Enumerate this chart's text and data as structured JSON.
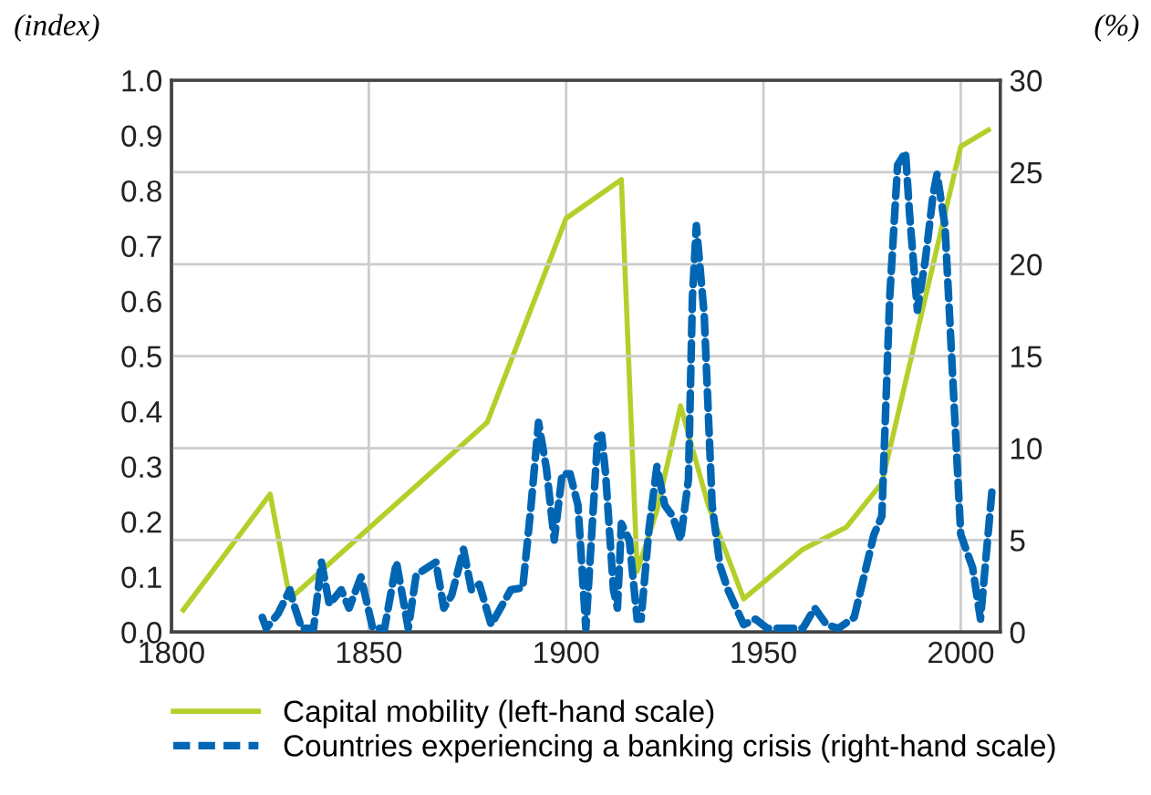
{
  "chart_data": {
    "type": "line",
    "ylabel": "(index)",
    "y2label": "(%)",
    "xlim": [
      1800,
      2010
    ],
    "xticks": [
      1800,
      1850,
      1900,
      1950,
      2000
    ],
    "ylim": [
      0,
      1
    ],
    "yticks": [
      {
        "value": 0,
        "label": "0.0"
      },
      0.1,
      0.2,
      0.3,
      0.4,
      0.5,
      0.6,
      0.7,
      0.8,
      0.9,
      {
        "value": 1,
        "label": "1.0"
      }
    ],
    "y2lim": [
      0,
      30
    ],
    "y2ticks": [
      0,
      5,
      10,
      15,
      20,
      25,
      30
    ],
    "grid": true,
    "legend": "bottom",
    "marker": "none",
    "series": [
      {
        "name": "Capital mobility (left-hand scale)",
        "color": "#b5cf2a",
        "line_style": "solid",
        "x": [
          1803,
          1825,
          1830,
          1880,
          1900,
          1914,
          1918,
          1923,
          1929,
          1936,
          1945,
          1960,
          1971,
          1980,
          2000,
          2007
        ],
        "values": [
          0.04,
          0.25,
          0.06,
          0.38,
          0.75,
          0.82,
          0.11,
          0.22,
          0.41,
          0.23,
          0.06,
          0.15,
          0.19,
          0.27,
          0.88,
          0.91
        ]
      },
      {
        "name": "Countries experiencing a banking crisis (right-hand scale)",
        "color": "#0066b3",
        "line_style": "dashed",
        "axis": "y2",
        "x": [
          1823,
          1824,
          1827,
          1830,
          1831,
          1833,
          1836,
          1838,
          1840,
          1843,
          1845,
          1848,
          1851,
          1854,
          1857,
          1860,
          1862,
          1867,
          1869,
          1871,
          1874,
          1876,
          1878,
          1881,
          1886,
          1889,
          1891,
          1893,
          1895,
          1897,
          1899,
          1901,
          1903,
          1905,
          1908,
          1909,
          1910,
          1912,
          1913,
          1914,
          1916,
          1918,
          1919,
          1921,
          1923,
          1925,
          1927,
          1929,
          1931,
          1932,
          1933,
          1935,
          1937,
          1939,
          1941,
          1945,
          1948,
          1951,
          1960,
          1963,
          1966,
          1969,
          1973,
          1978,
          1980,
          1982,
          1984,
          1986,
          1987,
          1989,
          1991,
          1993,
          1994,
          1996,
          2000,
          2003,
          2005,
          2008
        ],
        "values": [
          0.8,
          0.2,
          1.0,
          2.3,
          1.5,
          0.2,
          0.2,
          3.8,
          1.5,
          2.3,
          1.3,
          3.0,
          0.2,
          0.2,
          3.8,
          0.2,
          3.1,
          3.8,
          1.3,
          2.0,
          4.5,
          2.3,
          2.6,
          0.4,
          2.3,
          2.4,
          6.6,
          11.4,
          8.9,
          5.0,
          8.6,
          8.6,
          6.9,
          0.2,
          10.6,
          10.7,
          8.6,
          2.3,
          1.3,
          5.9,
          5.0,
          0.7,
          0.7,
          5.6,
          9.0,
          6.9,
          6.3,
          5.0,
          8.3,
          18.2,
          22.1,
          17.2,
          6.9,
          3.6,
          2.3,
          0.4,
          0.7,
          0.2,
          0.2,
          1.3,
          0.4,
          0.2,
          0.8,
          5.3,
          6.3,
          18.2,
          25.4,
          26.1,
          22.8,
          17.5,
          20.2,
          23.8,
          24.9,
          22.1,
          5.3,
          3.5,
          0.7,
          7.9
        ]
      }
    ]
  }
}
